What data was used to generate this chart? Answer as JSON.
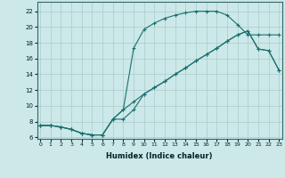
{
  "xlabel": "Humidex (Indice chaleur)",
  "bg_color": "#cce8e8",
  "line_color": "#1a7070",
  "grid_color": "#aacccc",
  "line1_x": [
    0,
    1,
    2,
    3,
    4,
    5,
    6,
    7,
    8,
    9,
    10,
    11,
    12,
    13,
    14,
    15,
    16,
    17,
    18,
    19,
    20,
    21,
    22,
    23
  ],
  "line1_y": [
    7.5,
    7.5,
    7.3,
    7.0,
    6.5,
    6.3,
    6.3,
    8.3,
    9.5,
    17.3,
    19.7,
    20.5,
    21.1,
    21.5,
    21.8,
    22.0,
    22.0,
    22.0,
    21.5,
    20.3,
    19.0,
    19.0,
    19.0,
    19.0
  ],
  "line2_x": [
    0,
    1,
    2,
    3,
    4,
    5,
    6,
    7,
    8,
    9,
    10,
    11,
    12,
    13,
    14,
    15,
    16,
    17,
    18,
    19,
    20,
    21,
    22,
    23
  ],
  "line2_y": [
    7.5,
    7.5,
    7.3,
    7.0,
    6.5,
    6.3,
    6.3,
    8.3,
    9.5,
    10.5,
    11.5,
    12.3,
    13.1,
    14.0,
    14.8,
    15.7,
    16.5,
    17.3,
    18.2,
    19.0,
    19.5,
    17.2,
    17.0,
    14.5
  ],
  "line3_x": [
    0,
    1,
    2,
    3,
    4,
    5,
    6,
    7,
    8,
    9,
    10,
    11,
    12,
    13,
    14,
    15,
    16,
    17,
    18,
    19,
    20,
    21,
    22,
    23
  ],
  "line3_y": [
    7.5,
    7.5,
    7.3,
    7.0,
    6.5,
    6.3,
    6.3,
    8.3,
    8.3,
    9.5,
    11.5,
    12.3,
    13.1,
    14.0,
    14.8,
    15.7,
    16.5,
    17.3,
    18.2,
    19.0,
    19.5,
    17.2,
    17.0,
    14.5
  ],
  "xlim": [
    -0.3,
    23.3
  ],
  "ylim": [
    5.8,
    23.2
  ],
  "yticks": [
    6,
    8,
    10,
    12,
    14,
    16,
    18,
    20,
    22
  ],
  "xticks": [
    0,
    1,
    2,
    3,
    4,
    5,
    6,
    7,
    8,
    9,
    10,
    11,
    12,
    13,
    14,
    15,
    16,
    17,
    18,
    19,
    20,
    21,
    22,
    23
  ]
}
